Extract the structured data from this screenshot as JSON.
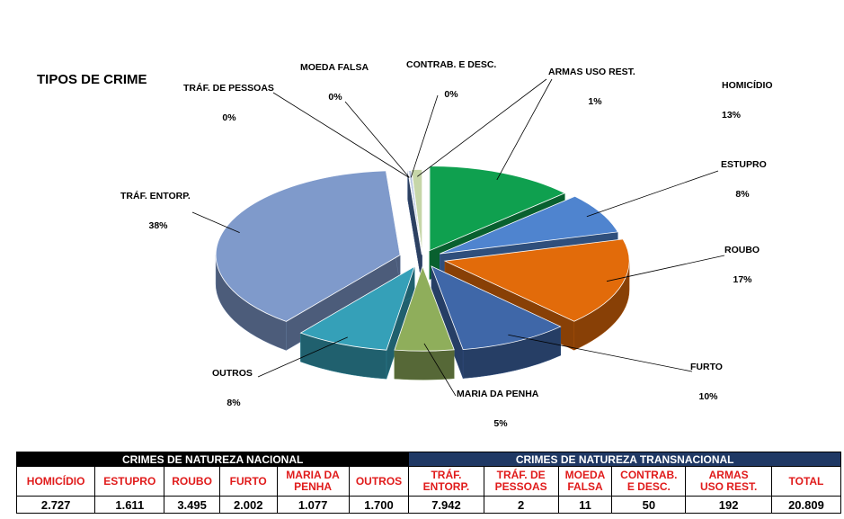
{
  "chart_data": {
    "type": "pie",
    "title": "TIPOS DE CRIME",
    "slices": [
      {
        "label": "HOMICÍDIO",
        "pct_label": "13%",
        "value": 2727,
        "color": "#0fa04f"
      },
      {
        "label": "ESTUPRO",
        "pct_label": "8%",
        "value": 1611,
        "color": "#4f84cf"
      },
      {
        "label": "ROUBO",
        "pct_label": "17%",
        "value": 3495,
        "color": "#e26b0a"
      },
      {
        "label": "FURTO",
        "pct_label": "10%",
        "value": 2002,
        "color": "#3f67a8"
      },
      {
        "label": "MARIA DA PENHA",
        "pct_label": "5%",
        "value": 1077,
        "color": "#8fae5b"
      },
      {
        "label": "OUTROS",
        "pct_label": "8%",
        "value": 1700,
        "color": "#35a0b8"
      },
      {
        "label": "TRÁF. ENTORP.",
        "pct_label": "38%",
        "value": 7942,
        "color": "#7f9acb"
      },
      {
        "label": "TRÁF. DE PESSOAS",
        "pct_label": "0%",
        "value": 2,
        "color": "#4a6aa2"
      },
      {
        "label": "MOEDA FALSA",
        "pct_label": "0%",
        "value": 11,
        "color": "#8aa6d8"
      },
      {
        "label": "CONTRAB. E DESC.",
        "pct_label": "0%",
        "value": 50,
        "color": "#b8c6e0"
      },
      {
        "label": "ARMAS USO REST.",
        "pct_label": "1%",
        "value": 192,
        "color": "#c6d6a8"
      }
    ]
  },
  "table": {
    "group_national": "CRIMES DE NATUREZA NACIONAL",
    "group_transnational": "CRIMES DE NATUREZA TRANSNACIONAL",
    "columns": [
      {
        "header": [
          "HOMICÍDIO"
        ],
        "value": "2.727"
      },
      {
        "header": [
          "ESTUPRO"
        ],
        "value": "1.611"
      },
      {
        "header": [
          "ROUBO"
        ],
        "value": "3.495"
      },
      {
        "header": [
          "FURTO"
        ],
        "value": "2.002"
      },
      {
        "header": [
          "MARIA DA",
          "PENHA"
        ],
        "value": "1.077"
      },
      {
        "header": [
          "OUTROS"
        ],
        "value": "1.700"
      },
      {
        "header": [
          "TRÁF.",
          "ENTORP."
        ],
        "value": "7.942"
      },
      {
        "header": [
          "TRÁF. DE",
          "PESSOAS"
        ],
        "value": "2"
      },
      {
        "header": [
          "MOEDA",
          "FALSA"
        ],
        "value": "11"
      },
      {
        "header": [
          "CONTRAB.",
          "E DESC."
        ],
        "value": "50"
      },
      {
        "header": [
          "ARMAS",
          "USO REST."
        ],
        "value": "192"
      },
      {
        "header": [
          "TOTAL"
        ],
        "value": "20.809"
      }
    ]
  }
}
